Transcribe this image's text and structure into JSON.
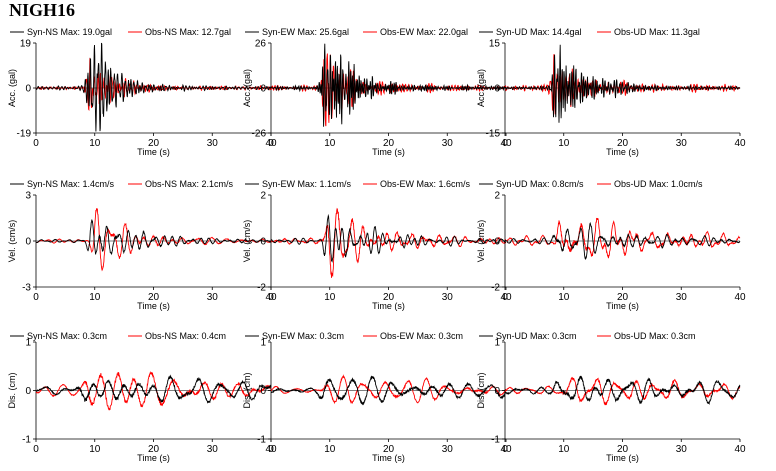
{
  "title": "NIGH16",
  "colors": {
    "syn": "#000000",
    "obs": "#ff0000",
    "axis": "#000000"
  },
  "chart_data": [
    {
      "type": "line",
      "row": 0,
      "col": 0,
      "component": "NS",
      "ylabel": "Acc. (gal)",
      "xlabel": "Time (s)",
      "xlim": [
        0,
        40
      ],
      "ylim": [
        -19,
        19
      ],
      "yticks": [
        -19,
        0,
        19
      ],
      "yticklabels": [
        "-19",
        "0",
        "19"
      ],
      "xticks": [
        0,
        10,
        20,
        30,
        40
      ],
      "legend": [
        {
          "name": "Syn-NS",
          "max": "Max: 19.0gal",
          "color": "#000000"
        },
        {
          "name": "Obs-NS",
          "max": "Max: 12.7gal",
          "color": "#ff0000"
        }
      ],
      "series": [
        {
          "name": "Syn-NS",
          "amp": 19.0,
          "f": 2.2,
          "seed": 11,
          "onset": 9.5,
          "decay": 4.0,
          "noise": 0.03
        },
        {
          "name": "Obs-NS",
          "amp": 12.7,
          "f": 2.0,
          "seed": 23,
          "onset": 9.3,
          "decay": 4.5,
          "noise": 0.05
        }
      ]
    },
    {
      "type": "line",
      "row": 0,
      "col": 1,
      "component": "EW",
      "ylabel": "Acc. (gal)",
      "xlabel": "Time (s)",
      "xlim": [
        0,
        40
      ],
      "ylim": [
        -26,
        26
      ],
      "yticks": [
        -26,
        0,
        26
      ],
      "yticklabels": [
        "-26",
        "0",
        "26"
      ],
      "xticks": [
        0,
        10,
        20,
        30,
        40
      ],
      "legend": [
        {
          "name": "Syn-EW",
          "max": "Max: 25.6gal",
          "color": "#000000"
        },
        {
          "name": "Obs-EW",
          "max": "Max: 22.0gal",
          "color": "#ff0000"
        }
      ],
      "series": [
        {
          "name": "Syn-EW",
          "amp": 25.6,
          "f": 2.4,
          "seed": 31,
          "onset": 9.6,
          "decay": 3.8,
          "noise": 0.03
        },
        {
          "name": "Obs-EW",
          "amp": 22.0,
          "f": 2.1,
          "seed": 47,
          "onset": 9.4,
          "decay": 4.2,
          "noise": 0.05
        }
      ]
    },
    {
      "type": "line",
      "row": 0,
      "col": 2,
      "component": "UD",
      "ylabel": "Acc. (gal)",
      "xlabel": "Time (s)",
      "xlim": [
        0,
        40
      ],
      "ylim": [
        -15,
        15
      ],
      "yticks": [
        -15,
        0,
        15
      ],
      "yticklabels": [
        "-15",
        "0",
        "15"
      ],
      "xticks": [
        0,
        10,
        20,
        30,
        40
      ],
      "legend": [
        {
          "name": "Syn-UD",
          "max": "Max: 14.4gal",
          "color": "#000000"
        },
        {
          "name": "Obs-UD",
          "max": "Max: 11.3gal",
          "color": "#ff0000"
        }
      ],
      "series": [
        {
          "name": "Syn-UD",
          "amp": 14.4,
          "f": 2.6,
          "seed": 53,
          "onset": 9.0,
          "decay": 4.5,
          "noise": 0.03
        },
        {
          "name": "Obs-UD",
          "amp": 11.3,
          "f": 2.3,
          "seed": 67,
          "onset": 8.5,
          "decay": 5.0,
          "noise": 0.1
        }
      ]
    },
    {
      "type": "line",
      "row": 1,
      "col": 0,
      "component": "NS",
      "ylabel": "Vel. (cm/s)",
      "xlabel": "Time (s)",
      "xlim": [
        0,
        40
      ],
      "ylim": [
        -3,
        3
      ],
      "yticks": [
        -3,
        0,
        3
      ],
      "yticklabels": [
        "-3",
        "0",
        "3"
      ],
      "xticks": [
        0,
        10,
        20,
        30,
        40
      ],
      "legend": [
        {
          "name": "Syn-NS",
          "max": "Max: 1.4cm/s",
          "color": "#000000"
        },
        {
          "name": "Obs-NS",
          "max": "Max: 2.1cm/s",
          "color": "#ff0000"
        }
      ],
      "series": [
        {
          "name": "Syn-NS",
          "amp": 1.4,
          "f": 0.55,
          "seed": 71,
          "onset": 9.5,
          "decay": 9.0,
          "noise": 0.08
        },
        {
          "name": "Obs-NS",
          "amp": 2.1,
          "f": 0.5,
          "seed": 83,
          "onset": 10.2,
          "decay": 8.0,
          "noise": 0.08
        }
      ]
    },
    {
      "type": "line",
      "row": 1,
      "col": 1,
      "component": "EW",
      "ylabel": "Vel. (cm/s)",
      "xlabel": "Time (s)",
      "xlim": [
        0,
        40
      ],
      "ylim": [
        -2,
        2
      ],
      "yticks": [
        -2,
        0,
        2
      ],
      "yticklabels": [
        "-2",
        "0",
        "2"
      ],
      "xticks": [
        0,
        10,
        20,
        30,
        40
      ],
      "legend": [
        {
          "name": "Syn-EW",
          "max": "Max: 1.1cm/s",
          "color": "#000000"
        },
        {
          "name": "Obs-EW",
          "max": "Max: 1.6cm/s",
          "color": "#ff0000"
        }
      ],
      "series": [
        {
          "name": "Syn-EW",
          "amp": 1.1,
          "f": 0.6,
          "seed": 89,
          "onset": 9.5,
          "decay": 8.0,
          "noise": 0.1
        },
        {
          "name": "Obs-EW",
          "amp": 1.6,
          "f": 0.55,
          "seed": 97,
          "onset": 10.0,
          "decay": 8.0,
          "noise": 0.1
        }
      ]
    },
    {
      "type": "line",
      "row": 1,
      "col": 2,
      "component": "UD",
      "ylabel": "Vel. (cm/s)",
      "xlabel": "Time (s)",
      "xlim": [
        0,
        40
      ],
      "ylim": [
        -2,
        2
      ],
      "yticks": [
        -2,
        0,
        2
      ],
      "yticklabels": [
        "-2",
        "0",
        "2"
      ],
      "xticks": [
        0,
        10,
        20,
        30,
        40
      ],
      "legend": [
        {
          "name": "Syn-UD",
          "max": "Max: 0.8cm/s",
          "color": "#000000"
        },
        {
          "name": "Obs-UD",
          "max": "Max: 1.0cm/s",
          "color": "#ff0000"
        }
      ],
      "series": [
        {
          "name": "Syn-UD",
          "amp": 0.8,
          "f": 0.55,
          "seed": 101,
          "onset": 9.0,
          "decay": 12.0,
          "noise": 0.15
        },
        {
          "name": "Obs-UD",
          "amp": 1.0,
          "f": 0.5,
          "seed": 113,
          "onset": 9.5,
          "decay": 12.0,
          "noise": 0.15
        }
      ]
    },
    {
      "type": "line",
      "row": 2,
      "col": 0,
      "component": "NS",
      "ylabel": "Dis. (cm)",
      "xlabel": "Time (s)",
      "xlim": [
        0,
        40
      ],
      "ylim": [
        -1,
        1
      ],
      "yticks": [
        -1,
        0,
        1
      ],
      "yticklabels": [
        "-1",
        "0",
        "1"
      ],
      "xticks": [
        0,
        10,
        20,
        30,
        40
      ],
      "legend": [
        {
          "name": "Syn-NS",
          "max": "Max: 0.3cm",
          "color": "#000000"
        },
        {
          "name": "Obs-NS",
          "max": "Max: 0.4cm",
          "color": "#ff0000"
        }
      ],
      "series": [
        {
          "name": "Syn-NS",
          "amp": 0.3,
          "f": 0.28,
          "seed": 127,
          "onset": 8.0,
          "decay": 30.0,
          "noise": 0.25
        },
        {
          "name": "Obs-NS",
          "amp": 0.4,
          "f": 0.3,
          "seed": 131,
          "onset": 9.0,
          "decay": 25.0,
          "noise": 0.2
        }
      ]
    },
    {
      "type": "line",
      "row": 2,
      "col": 1,
      "component": "EW",
      "ylabel": "Dis. (cm)",
      "xlabel": "Time (s)",
      "xlim": [
        0,
        40
      ],
      "ylim": [
        -1,
        1
      ],
      "yticks": [
        -1,
        0,
        1
      ],
      "yticklabels": [
        "-1",
        "0",
        "1"
      ],
      "xticks": [
        0,
        10,
        20,
        30,
        40
      ],
      "legend": [
        {
          "name": "Syn-EW",
          "max": "Max: 0.3cm",
          "color": "#000000"
        },
        {
          "name": "Obs-EW",
          "max": "Max: 0.3cm",
          "color": "#ff0000"
        }
      ],
      "series": [
        {
          "name": "Syn-EW",
          "amp": 0.3,
          "f": 0.3,
          "seed": 137,
          "onset": 9.0,
          "decay": 30.0,
          "noise": 0.25
        },
        {
          "name": "Obs-EW",
          "amp": 0.3,
          "f": 0.32,
          "seed": 139,
          "onset": 9.5,
          "decay": 30.0,
          "noise": 0.25
        }
      ]
    },
    {
      "type": "line",
      "row": 2,
      "col": 2,
      "component": "UD",
      "ylabel": "Dis. (cm)",
      "xlabel": "Time (s)",
      "xlim": [
        0,
        40
      ],
      "ylim": [
        -1,
        1
      ],
      "yticks": [
        -1,
        0,
        1
      ],
      "yticklabels": [
        "-1",
        "0",
        "1"
      ],
      "xticks": [
        0,
        10,
        20,
        30,
        40
      ],
      "legend": [
        {
          "name": "Syn-UD",
          "max": "Max: 0.3cm",
          "color": "#000000"
        },
        {
          "name": "Obs-UD",
          "max": "Max: 0.3cm",
          "color": "#ff0000"
        }
      ],
      "series": [
        {
          "name": "Syn-UD",
          "amp": 0.3,
          "f": 0.3,
          "seed": 149,
          "onset": 9.0,
          "decay": 30.0,
          "noise": 0.25
        },
        {
          "name": "Obs-UD",
          "amp": 0.3,
          "f": 0.33,
          "seed": 151,
          "onset": 10.5,
          "decay": 30.0,
          "noise": 0.25
        }
      ]
    }
  ]
}
